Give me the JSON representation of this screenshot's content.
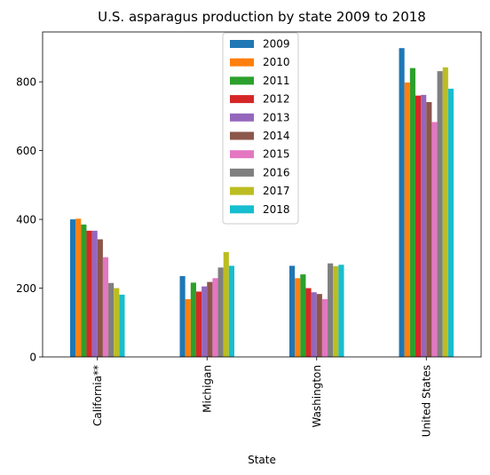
{
  "chart_data": {
    "type": "bar",
    "title": "U.S. asparagus production by state 2009 to 2018",
    "xlabel": "State",
    "ylabel": "",
    "ylim": [
      0,
      945
    ],
    "yticks": [
      0,
      200,
      400,
      600,
      800
    ],
    "grid": false,
    "legend_position": "top-center",
    "categories": [
      "California**",
      "Michigan",
      "Washington",
      "United States"
    ],
    "series": [
      {
        "name": "2009",
        "color": "#1f77b4",
        "values": [
          400,
          235,
          265,
          898
        ]
      },
      {
        "name": "2010",
        "color": "#ff7f0e",
        "values": [
          402,
          168,
          229,
          798
        ]
      },
      {
        "name": "2011",
        "color": "#2ca02c",
        "values": [
          385,
          216,
          240,
          840
        ]
      },
      {
        "name": "2012",
        "color": "#d62728",
        "values": [
          367,
          190,
          200,
          760
        ]
      },
      {
        "name": "2013",
        "color": "#9467bd",
        "values": [
          367,
          205,
          188,
          762
        ]
      },
      {
        "name": "2014",
        "color": "#8c564b",
        "values": [
          342,
          218,
          183,
          741
        ]
      },
      {
        "name": "2015",
        "color": "#e377c2",
        "values": [
          290,
          229,
          168,
          683
        ]
      },
      {
        "name": "2016",
        "color": "#7f7f7f",
        "values": [
          215,
          260,
          272,
          831
        ]
      },
      {
        "name": "2017",
        "color": "#bcbd22",
        "values": [
          200,
          305,
          264,
          842
        ]
      },
      {
        "name": "2018",
        "color": "#17becf",
        "values": [
          181,
          265,
          268,
          780
        ]
      }
    ]
  }
}
